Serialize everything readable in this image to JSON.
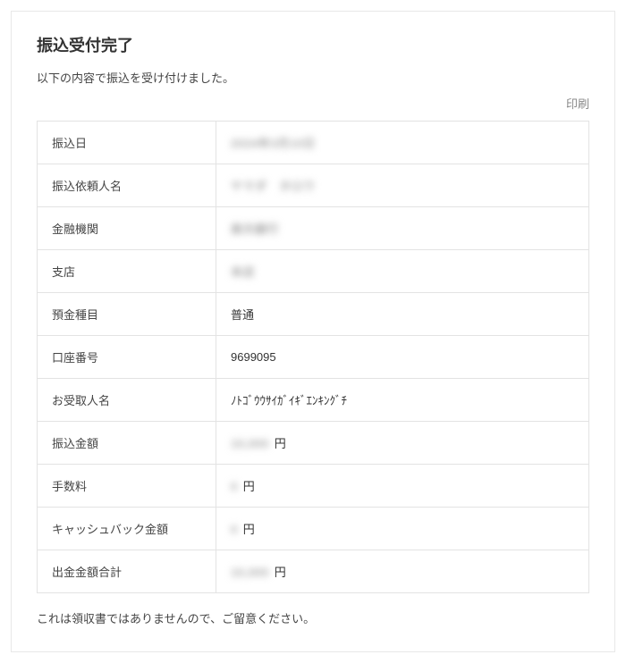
{
  "header": {
    "title": "振込受付完了",
    "subtitle": "以下の内容で振込を受け付けました。",
    "print_label": "印刷"
  },
  "rows": {
    "transfer_date": {
      "label": "振込日",
      "value": "2024年3月10日",
      "blurred": true,
      "suffix": ""
    },
    "requester": {
      "label": "振込依頼人名",
      "value": "ヤマダ　タロウ",
      "blurred": true,
      "suffix": ""
    },
    "bank": {
      "label": "金融機関",
      "value": "楽天銀行",
      "blurred": true,
      "suffix": ""
    },
    "branch": {
      "label": "支店",
      "value": "本店",
      "blurred": true,
      "suffix": ""
    },
    "account_type": {
      "label": "預金種目",
      "value": "普通",
      "blurred": false,
      "suffix": ""
    },
    "account_number": {
      "label": "口座番号",
      "value": "9699095",
      "blurred": false,
      "suffix": ""
    },
    "payee": {
      "label": "お受取人名",
      "value": "ﾉﾄｺﾞｳｳｻｲｶﾞｲｷﾞｴﾝｷﾝｸﾞﾁ",
      "blurred": false,
      "suffix": ""
    },
    "amount": {
      "label": "振込金額",
      "value": "10,000",
      "blurred": true,
      "suffix": "円"
    },
    "fee": {
      "label": "手数料",
      "value": "0",
      "blurred": true,
      "suffix": "円"
    },
    "cashback": {
      "label": "キャッシュバック金額",
      "value": "0",
      "blurred": true,
      "suffix": "円"
    },
    "total": {
      "label": "出金金額合計",
      "value": "10,000",
      "blurred": true,
      "suffix": "円"
    }
  },
  "row_order": [
    "transfer_date",
    "requester",
    "bank",
    "branch",
    "account_type",
    "account_number",
    "payee",
    "amount",
    "fee",
    "cashback",
    "total"
  ],
  "footnote": "これは領収書ではありませんので、ご留意ください。",
  "colors": {
    "border": "#e3e3e3",
    "text": "#333333",
    "muted": "#888888"
  }
}
